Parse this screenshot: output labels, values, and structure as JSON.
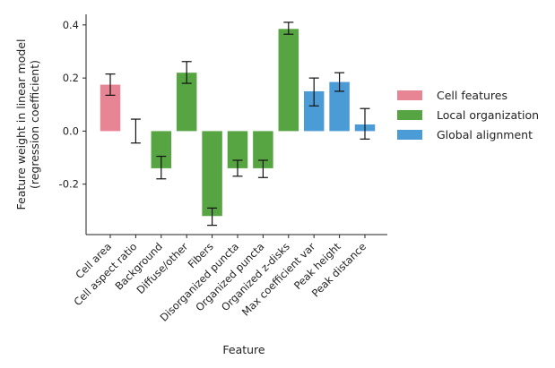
{
  "chart_data": {
    "type": "bar",
    "title": "",
    "xlabel": "Feature",
    "ylabel": "Feature weight in linear model",
    "ylabel_sub": "(regression coefficient)",
    "ylim": [
      -0.39,
      0.44
    ],
    "yticks": [
      {
        "value": 0.4,
        "label": "0.4"
      },
      {
        "value": 0.2,
        "label": "0.2"
      },
      {
        "value": 0.0,
        "label": "0.0"
      },
      {
        "value": -0.2,
        "label": "-0.2"
      }
    ],
    "grid": false,
    "legend_position": "right",
    "groups": [
      {
        "name": "Cell features",
        "color": "#e88594"
      },
      {
        "name": "Local organization",
        "color": "#57a442"
      },
      {
        "name": "Global alignment",
        "color": "#4b9bd6"
      }
    ],
    "bars": [
      {
        "category": "Cell area",
        "value": 0.175,
        "err_low": 0.135,
        "err_high": 0.215,
        "group": 0
      },
      {
        "category": "Cell aspect ratio",
        "value": 0.0,
        "err_low": -0.045,
        "err_high": 0.045,
        "group": 0
      },
      {
        "category": "Background",
        "value": -0.14,
        "err_low": -0.18,
        "err_high": -0.095,
        "group": 1
      },
      {
        "category": "Diffuse/other",
        "value": 0.22,
        "err_low": 0.18,
        "err_high": 0.262,
        "group": 1
      },
      {
        "category": "Fibers",
        "value": -0.32,
        "err_low": -0.355,
        "err_high": -0.29,
        "group": 1
      },
      {
        "category": "Disorganized puncta",
        "value": -0.14,
        "err_low": -0.17,
        "err_high": -0.11,
        "group": 1
      },
      {
        "category": "Organized puncta",
        "value": -0.14,
        "err_low": -0.175,
        "err_high": -0.11,
        "group": 1
      },
      {
        "category": "Organized z-disks",
        "value": 0.385,
        "err_low": 0.365,
        "err_high": 0.41,
        "group": 1
      },
      {
        "category": "Max coefficient var",
        "value": 0.15,
        "err_low": 0.095,
        "err_high": 0.2,
        "group": 2
      },
      {
        "category": "Peak height",
        "value": 0.185,
        "err_low": 0.15,
        "err_high": 0.22,
        "group": 2
      },
      {
        "category": "Peak distance",
        "value": 0.025,
        "err_low": -0.03,
        "err_high": 0.085,
        "group": 2
      }
    ]
  }
}
